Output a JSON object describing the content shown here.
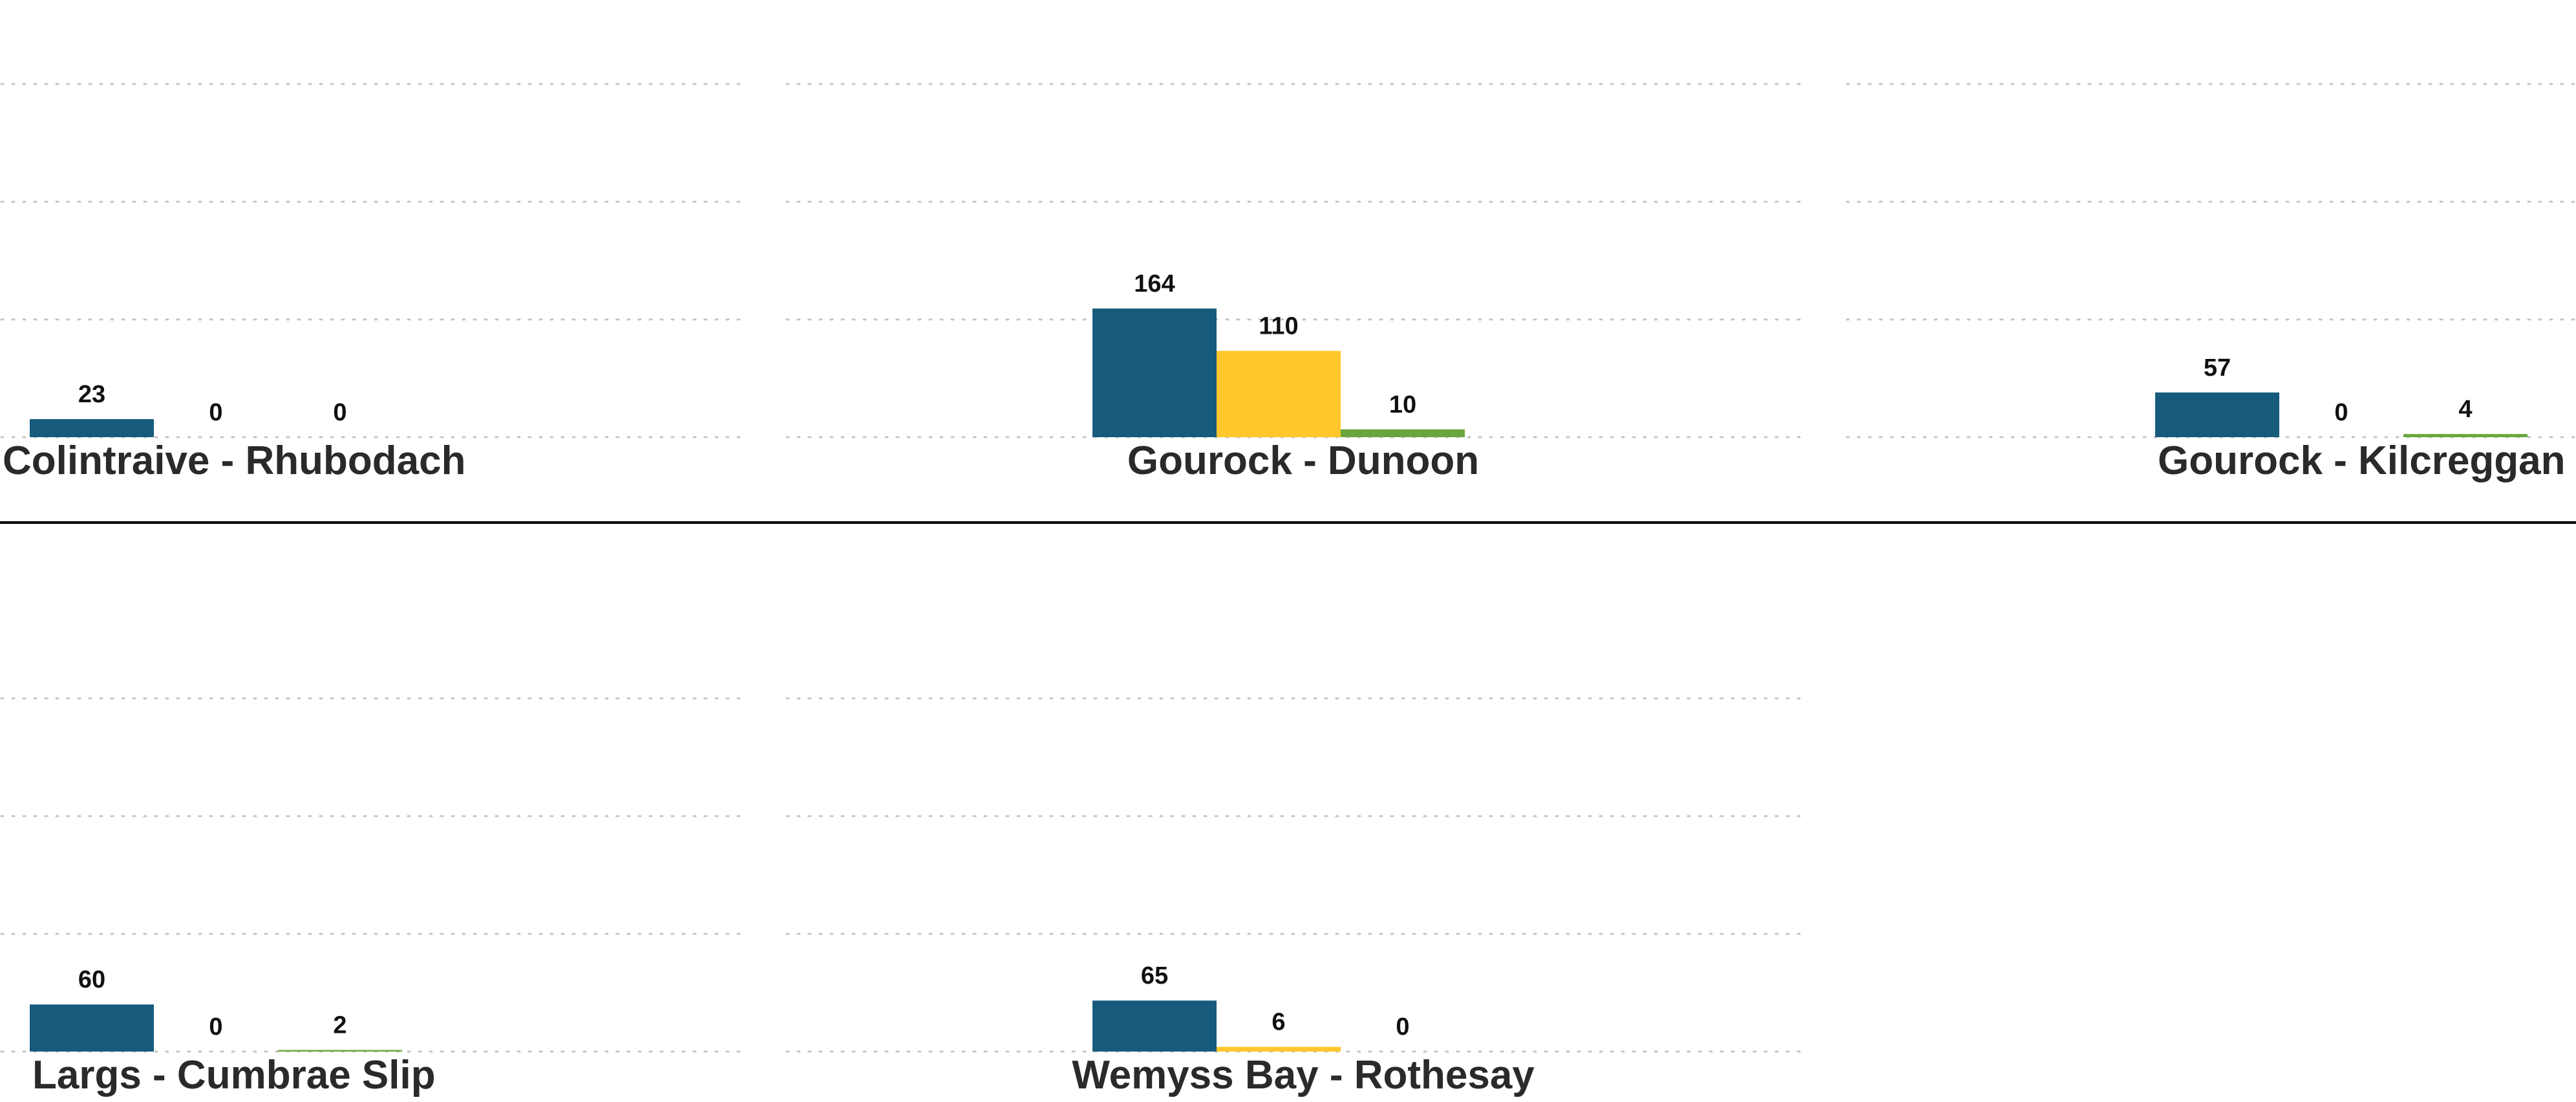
{
  "colors": {
    "series_1": "#175b7c",
    "series_2": "#ffc72c",
    "series_3": "#6aa53b"
  },
  "chart_data": [
    {
      "type": "bar",
      "title": "Colintraive - Rhubodach",
      "ylim": [
        0,
        180
      ],
      "grid": true,
      "categories": [
        "Colintraive - Rhubodach"
      ],
      "series": [
        {
          "values": [
            23
          ]
        },
        {
          "values": [
            0
          ]
        },
        {
          "values": [
            0
          ]
        }
      ]
    },
    {
      "type": "bar",
      "title": "Gourock - Dunoon",
      "ylim": [
        0,
        180
      ],
      "grid": true,
      "categories": [
        "Gourock - Dunoon"
      ],
      "series": [
        {
          "values": [
            164
          ]
        },
        {
          "values": [
            110
          ]
        },
        {
          "values": [
            10
          ]
        }
      ]
    },
    {
      "type": "bar",
      "title": "Gourock - Kilcreggan",
      "ylim": [
        0,
        180
      ],
      "grid": true,
      "categories": [
        "Gourock - Kilcreggan"
      ],
      "series": [
        {
          "values": [
            57
          ]
        },
        {
          "values": [
            0
          ]
        },
        {
          "values": [
            4
          ]
        }
      ]
    },
    {
      "type": "bar",
      "title": "Largs - Cumbrae Slip",
      "ylim": [
        0,
        180
      ],
      "grid": true,
      "categories": [
        "Largs - Cumbrae Slip"
      ],
      "series": [
        {
          "values": [
            60
          ]
        },
        {
          "values": [
            0
          ]
        },
        {
          "values": [
            2
          ]
        }
      ]
    },
    {
      "type": "bar",
      "title": "Wemyss Bay - Rothesay",
      "ylim": [
        0,
        180
      ],
      "grid": true,
      "categories": [
        "Wemyss Bay - Rothesay"
      ],
      "series": [
        {
          "values": [
            65
          ]
        },
        {
          "values": [
            6
          ]
        },
        {
          "values": [
            0
          ]
        }
      ]
    }
  ]
}
